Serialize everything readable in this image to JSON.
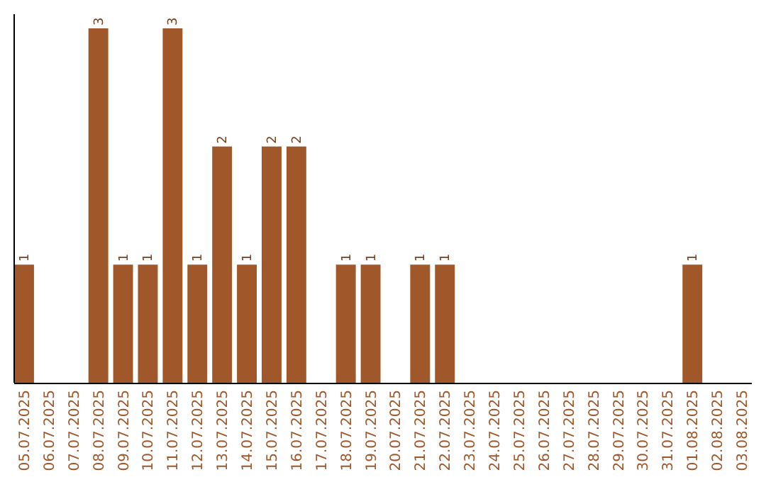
{
  "chart_data": {
    "type": "bar",
    "categories": [
      "05.07.2025",
      "06.07.2025",
      "07.07.2025",
      "08.07.2025",
      "09.07.2025",
      "10.07.2025",
      "11.07.2025",
      "12.07.2025",
      "13.07.2025",
      "14.07.2025",
      "15.07.2025",
      "16.07.2025",
      "17.07.2025",
      "18.07.2025",
      "19.07.2025",
      "20.07.2025",
      "21.07.2025",
      "22.07.2025",
      "23.07.2025",
      "24.07.2025",
      "25.07.2025",
      "26.07.2025",
      "27.07.2025",
      "28.07.2025",
      "29.07.2025",
      "30.07.2025",
      "31.07.2025",
      "01.08.2025",
      "02.08.2025",
      "03.08.2025"
    ],
    "values": [
      1,
      0,
      0,
      3,
      1,
      1,
      3,
      1,
      2,
      1,
      2,
      2,
      0,
      1,
      1,
      0,
      1,
      1,
      0,
      0,
      0,
      0,
      0,
      0,
      0,
      0,
      0,
      1,
      0,
      0
    ],
    "value_labels": [
      "1",
      null,
      null,
      "3",
      "1",
      "1",
      "3",
      "1",
      "2",
      "1",
      "2",
      "2",
      null,
      "1",
      "1",
      null,
      "1",
      "1",
      null,
      null,
      null,
      null,
      null,
      null,
      null,
      null,
      null,
      "1",
      null,
      null
    ],
    "color": "#a0572a"
  }
}
